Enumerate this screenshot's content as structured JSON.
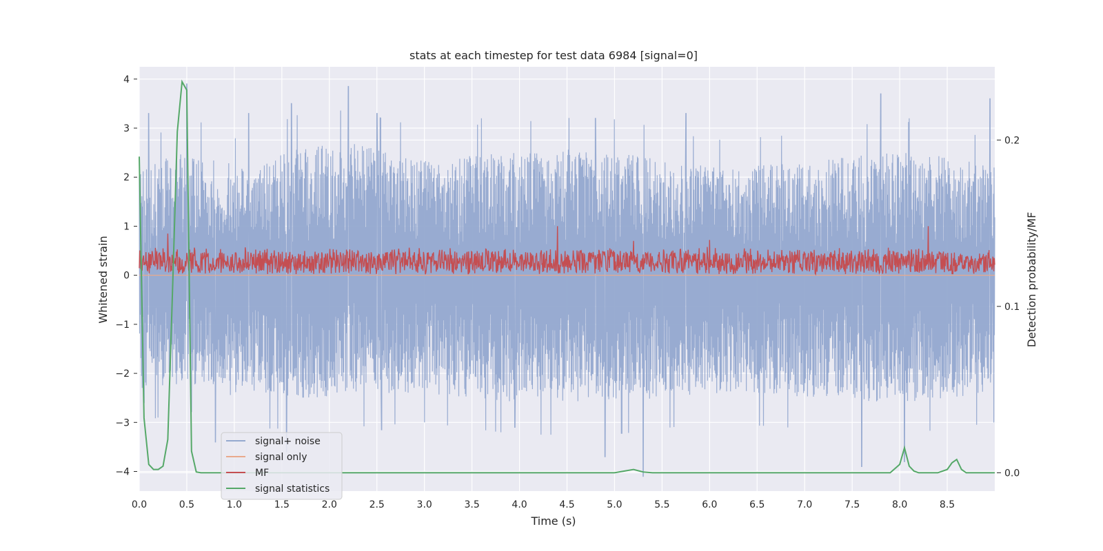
{
  "chart_data": {
    "type": "line",
    "title": "stats at each timestep for test data 6984 [signal=0]",
    "xlabel": "Time (s)",
    "ylabel": "Whitened strain",
    "ylabel_right": "Detection probability/MF",
    "xlim": [
      0.0,
      9.0
    ],
    "ylim": [
      -4.4,
      4.25
    ],
    "ylim_right": [
      -0.011,
      0.244
    ],
    "x_ticks": [
      "0.0",
      "0.5",
      "1.0",
      "1.5",
      "2.0",
      "2.5",
      "3.0",
      "3.5",
      "4.0",
      "4.5",
      "5.0",
      "5.5",
      "6.0",
      "6.5",
      "7.0",
      "7.5",
      "8.0",
      "8.5"
    ],
    "y_ticks": [
      "4",
      "3",
      "2",
      "1",
      "0",
      "−1",
      "−2",
      "−3",
      "−4"
    ],
    "y_right_ticks": [
      "0.2",
      "0.1",
      "0.0"
    ],
    "grid": true,
    "legend_position": "lower-left",
    "series": [
      {
        "name": "signal+ noise",
        "color": "#94a8cf",
        "axis": "left",
        "description_kind": "noise",
        "envelope_upper": [
          [
            0.0,
            2.3
          ],
          [
            0.1,
            2.2
          ],
          [
            0.5,
            2.6
          ],
          [
            1.2,
            2.1
          ],
          [
            1.6,
            2.6
          ],
          [
            2.2,
            2.7
          ],
          [
            3.0,
            2.4
          ],
          [
            4.0,
            2.5
          ],
          [
            4.8,
            2.6
          ],
          [
            5.5,
            2.4
          ],
          [
            6.0,
            2.2
          ],
          [
            7.0,
            2.3
          ],
          [
            7.8,
            2.5
          ],
          [
            8.3,
            2.5
          ],
          [
            9.0,
            2.2
          ]
        ],
        "envelope_lower": [
          [
            0.0,
            -2.4
          ],
          [
            0.5,
            -2.2
          ],
          [
            1.0,
            -2.5
          ],
          [
            2.0,
            -2.5
          ],
          [
            3.0,
            -2.4
          ],
          [
            4.0,
            -2.6
          ],
          [
            5.0,
            -2.6
          ],
          [
            6.0,
            -2.4
          ],
          [
            7.0,
            -2.5
          ],
          [
            8.0,
            -2.6
          ],
          [
            9.0,
            -2.4
          ]
        ],
        "peaks": [
          [
            0.1,
            3.3
          ],
          [
            0.5,
            3.9
          ],
          [
            1.15,
            3.3
          ],
          [
            1.6,
            3.5
          ],
          [
            2.2,
            3.85
          ],
          [
            2.5,
            3.3
          ],
          [
            3.6,
            3.2
          ],
          [
            4.8,
            3.2
          ],
          [
            5.75,
            3.3
          ],
          [
            7.8,
            3.7
          ],
          [
            8.1,
            3.2
          ],
          [
            8.95,
            3.6
          ]
        ],
        "troughs": [
          [
            0.05,
            -2.6
          ],
          [
            0.8,
            -3.4
          ],
          [
            1.55,
            -3.6
          ],
          [
            2.55,
            -3.15
          ],
          [
            3.95,
            -3.1
          ],
          [
            4.9,
            -3.7
          ],
          [
            5.3,
            -4.1
          ],
          [
            7.6,
            -3.9
          ],
          [
            8.05,
            -3.8
          ]
        ]
      },
      {
        "name": "signal only",
        "color": "#e9a98c",
        "axis": "left",
        "x": [
          0.0,
          9.0
        ],
        "y": [
          0.0,
          0.0
        ]
      },
      {
        "name": "MF",
        "color": "#c44e52",
        "axis": "left",
        "description_kind": "band",
        "band_center": 0.28,
        "band_amplitude": 0.3,
        "peaks": [
          [
            0.3,
            0.85
          ],
          [
            4.4,
            1.0
          ],
          [
            8.3,
            1.0
          ],
          [
            5.2,
            0.7
          ],
          [
            6.0,
            0.72
          ]
        ]
      },
      {
        "name": "signal statistics",
        "color": "#55a868",
        "axis": "right",
        "x": [
          0.0,
          0.05,
          0.1,
          0.15,
          0.2,
          0.25,
          0.3,
          0.35,
          0.4,
          0.45,
          0.5,
          0.55,
          0.6,
          0.65,
          0.7,
          5.0,
          5.1,
          5.2,
          5.3,
          5.4,
          7.9,
          8.0,
          8.05,
          8.1,
          8.15,
          8.2,
          8.3,
          8.4,
          8.5,
          8.55,
          8.6,
          8.65,
          8.7,
          9.0
        ],
        "y": [
          0.19,
          0.033,
          0.005,
          0.002,
          0.002,
          0.004,
          0.02,
          0.11,
          0.205,
          0.235,
          0.23,
          0.013,
          0.0005,
          0.0,
          0.0,
          0.0,
          0.001,
          0.002,
          0.0005,
          0.0,
          0.0,
          0.005,
          0.015,
          0.004,
          0.001,
          0.0,
          0.0,
          0.0,
          0.002,
          0.006,
          0.008,
          0.002,
          0.0,
          0.0
        ]
      }
    ]
  }
}
